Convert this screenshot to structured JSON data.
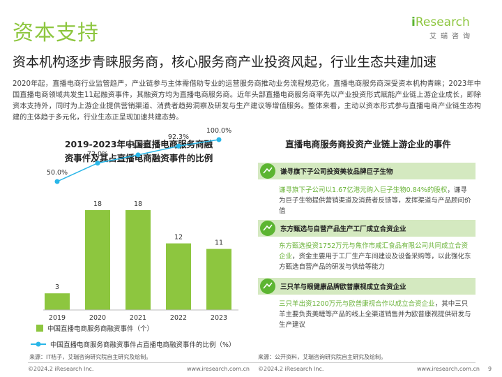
{
  "page": {
    "title": "资本支持",
    "subtitle": "资本机构逐步青睐服务商，核心服务商产业投资风起，行业生态共建加速",
    "paragraph": "2020年起，直播电商行业监管趋严，产业链参与主体需借助专业的运营服务商推动业务流程规范化，直播电商服务商深受资本机构青睐；2023年中国直播电商领域共发生11起融资事件，其融资方均为直播电商服务商。近年头部直播电商服务商率先以产业投资形式赋能产业链上游企业成长，即除资本支持外，同时为上游企业提供营销渠道、消费者趋势洞察及研发与生产建议等增值服务。整体来看，主动以资本形式参与直播电商产业链生态构建的主体趋于多元化，行业生态正呈现加速共建态势。"
  },
  "logo": {
    "brand_prefix": "i",
    "brand_rest": "Research",
    "cn": "艾瑞咨询"
  },
  "chart_data": {
    "type": "bar+line",
    "title_line1": "2019-2023年中国直播电商服务商融",
    "title_line2": "资事件及其占直播电商融资事件的比例",
    "categories": [
      "2019",
      "2020",
      "2021",
      "2022",
      "2023"
    ],
    "series": [
      {
        "name": "中国直播电商服务商融资事件（个）",
        "type": "bar",
        "color": "#8dc63f",
        "values": [
          3,
          18,
          18,
          12,
          11
        ],
        "labels": [
          "3",
          "18",
          "18",
          "12",
          "11"
        ]
      },
      {
        "name": "中国直播电商服务商融资事件占直播电商融资事件的比例（%）",
        "type": "line",
        "color": "#29b6e8",
        "values": [
          50.0,
          72.0,
          81.8,
          92.3,
          100.0
        ],
        "labels": [
          "50.0%",
          "72.0%",
          "81.8%",
          "92.3%",
          "100.0%"
        ]
      }
    ],
    "bar_ylim": [
      0,
      20
    ],
    "line_ylim": [
      0,
      100
    ],
    "legend": "bottom",
    "grid": false
  },
  "events": {
    "title": "直播电商服务商投资产业链上游企业的事件",
    "items": [
      {
        "header": "谦寻旗下子公司投资美妆品牌巨子生物",
        "body_hl": "谦寻旗下子公司以1.67亿港元购入巨子生物0.84%的股权",
        "body_rest": "，谦寻为巨子生物提供营销渠道及消费者反馈等，发挥渠道与产品顾问价值"
      },
      {
        "header": "东方甄选与自营产品生产工厂成立合资企业",
        "body_hl": "东方甄选投资1752万元与焦作市咸汇食品有限公司共同成立合资企业",
        "body_rest": "，资金主要用于工厂生产车间建设及设备采购等，以此强化东方甄选自营产品的研发与供给等能力"
      },
      {
        "header": "三只羊与眼健康品牌欧普康视成立合资企业",
        "body_hl": "三只羊出资1200万元与欧普康视合作以成立合资企业",
        "body_rest": "，其中三只羊主要负责美睫等产品的线上全渠道销售并为欧普康视提供研发与生产建议"
      }
    ]
  },
  "sources": {
    "left": "来源：IT桔子，艾瑞咨询研究院自主研究及绘制。",
    "right": "来源：公开资料，艾瑞咨询研究院自主研究及绘制。"
  },
  "footer": {
    "left_copyright": "©2024.2 iResearch Inc.",
    "left_url": "www.iresearch.com.cn",
    "right_copyright": "©2024.2 iResearch Inc.",
    "right_url": "www.iresearch.com.cn",
    "page_number": "9"
  }
}
